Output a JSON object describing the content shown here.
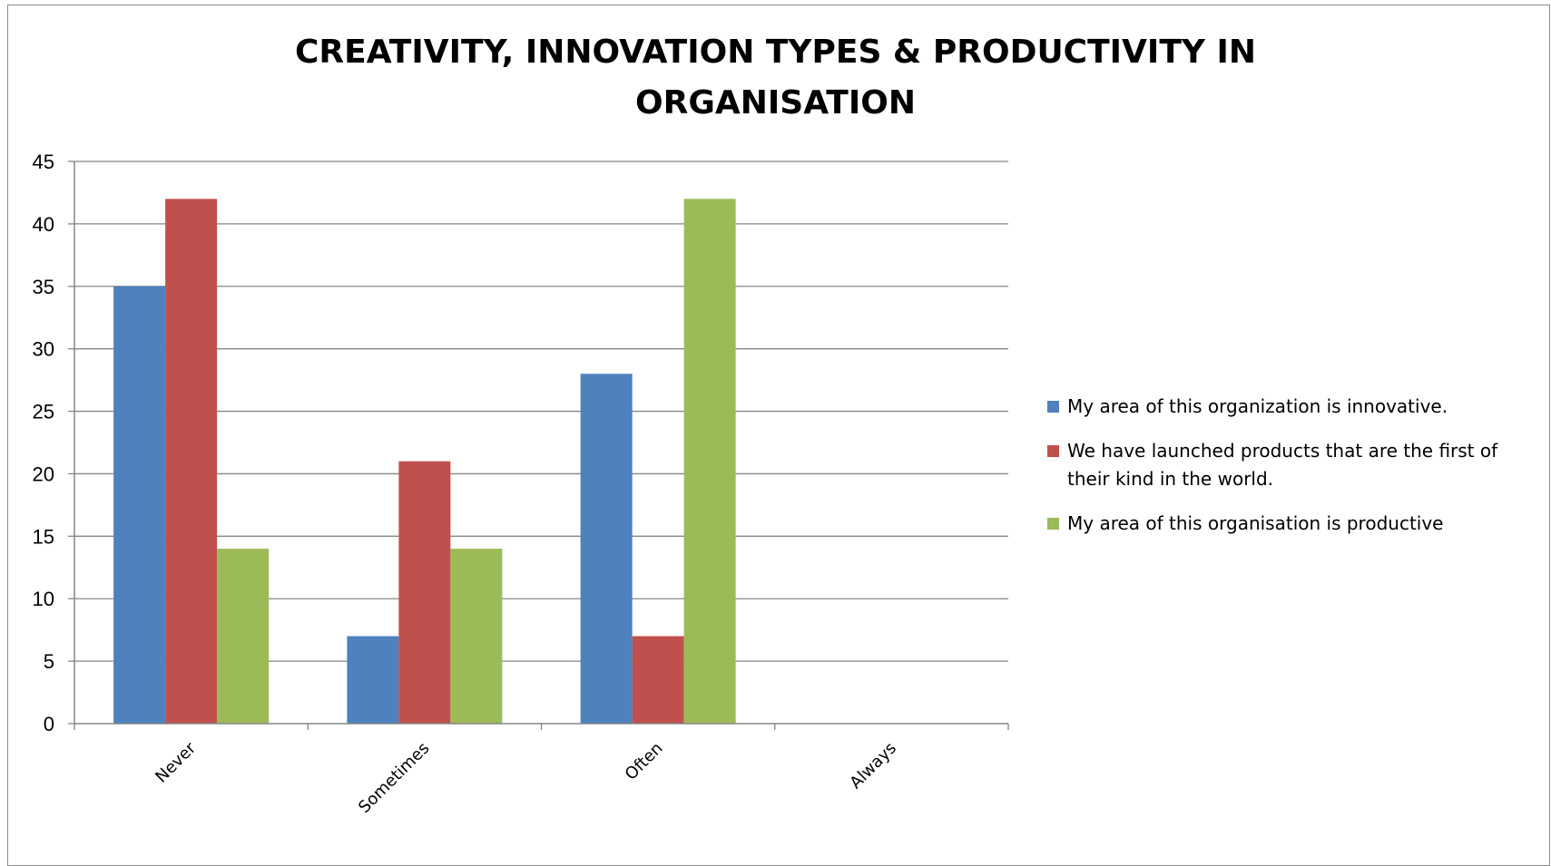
{
  "chart_data": {
    "type": "bar",
    "title_lines": [
      "CREATIVITY, INNOVATION TYPES & PRODUCTIVITY IN",
      "ORGANISATION"
    ],
    "categories": [
      "Never",
      "Sometimes",
      "Often",
      "Always"
    ],
    "series": [
      {
        "name": "My area of this organization is innovative.",
        "color": "#4f81bd",
        "values": [
          35,
          7,
          28,
          0
        ]
      },
      {
        "name": "We have launched products that are the first of their kind in the world.",
        "color": "#c0504d",
        "values": [
          42,
          21,
          7,
          0
        ]
      },
      {
        "name": "My area of this organisation is productive",
        "color": "#9bbb59",
        "values": [
          14,
          14,
          42,
          0
        ]
      }
    ],
    "yticks": [
      "0",
      "5",
      "10",
      "15",
      "20",
      "25",
      "30",
      "35",
      "40",
      "45"
    ],
    "ylim": [
      0,
      45
    ],
    "ystep": 5,
    "grid": true,
    "legend_position": "right"
  }
}
